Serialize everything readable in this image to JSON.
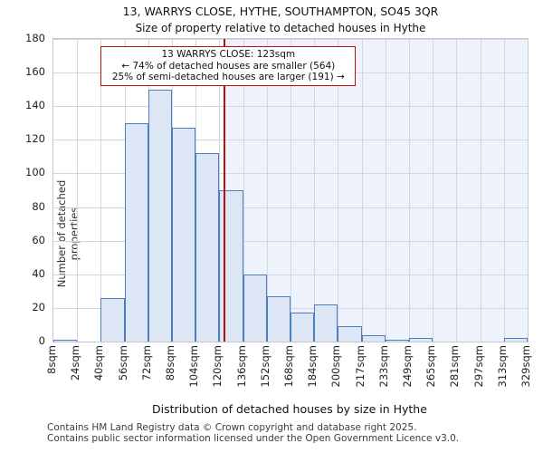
{
  "header": {
    "title": "13, WARRYS CLOSE, HYTHE, SOUTHAMPTON, SO45 3QR",
    "subtitle": "Size of property relative to detached houses in Hythe"
  },
  "chart_data": {
    "type": "bar",
    "title": "13, WARRYS CLOSE, HYTHE, SOUTHAMPTON, SO45 3QR",
    "subtitle": "Size of property relative to detached houses in Hythe",
    "xlabel": "Distribution of detached houses by size in Hythe",
    "ylabel": "Number of detached properties",
    "categories": [
      "8sqm",
      "24sqm",
      "40sqm",
      "56sqm",
      "72sqm",
      "88sqm",
      "104sqm",
      "120sqm",
      "136sqm",
      "152sqm",
      "168sqm",
      "184sqm",
      "200sqm",
      "217sqm",
      "233sqm",
      "249sqm",
      "265sqm",
      "281sqm",
      "297sqm",
      "313sqm",
      "329sqm"
    ],
    "bin_edges_sqm": [
      8,
      24,
      40,
      56,
      72,
      88,
      104,
      120,
      136,
      152,
      168,
      184,
      200,
      217,
      233,
      249,
      265,
      281,
      297,
      313,
      329
    ],
    "values": [
      1,
      0,
      26,
      130,
      150,
      127,
      112,
      90,
      40,
      27,
      17,
      22,
      9,
      4,
      1,
      2,
      0,
      0,
      0,
      2
    ],
    "ylim": [
      0,
      180
    ],
    "yticks": [
      0,
      20,
      40,
      60,
      80,
      100,
      120,
      140,
      160,
      180
    ],
    "grid": true,
    "legend": "none",
    "marker_line_sqm": 123,
    "shaded_region_from_sqm": 123,
    "annotation": {
      "lines": {
        "0": "13 WARRYS CLOSE: 123sqm",
        "1": "← 74% of detached houses are smaller (564)",
        "2": "25% of semi-detached houses are larger (191) →"
      }
    },
    "colors": {
      "bar_fill": "#dce6f5",
      "bar_edge": "#4d7ebf",
      "marker_line": "#bb0f0f",
      "annotation_border": "#bb0f0f",
      "shade": "#eef2fb",
      "grid": "#d2d6de"
    }
  },
  "footer": {
    "lines": {
      "0": "Contains HM Land Registry data © Crown copyright and database right 2025.",
      "1": "Contains public sector information licensed under the Open Government Licence v3.0."
    }
  }
}
